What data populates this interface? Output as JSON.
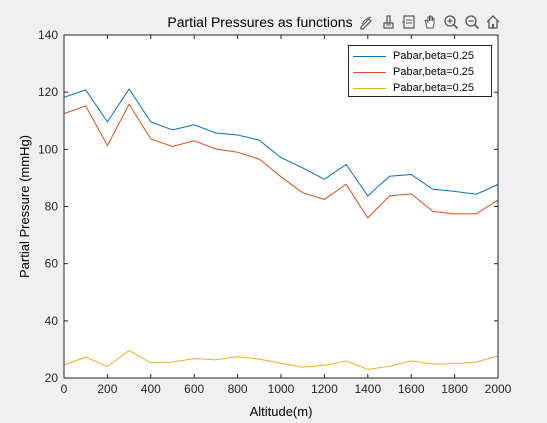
{
  "window": {
    "toolbar_icons": [
      "edit-plot-icon",
      "brush-icon",
      "data-tips-icon",
      "pan-icon",
      "zoom-in-icon",
      "zoom-out-icon",
      "restore-view-icon"
    ]
  },
  "chart_data": {
    "type": "line",
    "title": "Partial Pressures as functions of Altit",
    "xlabel": "Altitude(m)",
    "ylabel": "Partial Pressure (mmHg)",
    "xlim": [
      0,
      2000
    ],
    "ylim": [
      20,
      140
    ],
    "xticks": [
      0,
      200,
      400,
      600,
      800,
      1000,
      1200,
      1400,
      1600,
      1800,
      2000
    ],
    "yticks": [
      20,
      40,
      60,
      80,
      100,
      120,
      140
    ],
    "grid": false,
    "legend_position": "top-right",
    "x": [
      0,
      100,
      200,
      300,
      400,
      500,
      600,
      700,
      800,
      900,
      1000,
      1100,
      1200,
      1300,
      1400,
      1500,
      1600,
      1700,
      1800,
      1900,
      2000
    ],
    "series": [
      {
        "name": "Pabar,beta=0.25",
        "color": "#0072bd",
        "values": [
          118.2,
          120.8,
          109.6,
          121.1,
          109.6,
          106.8,
          108.6,
          105.7,
          105.0,
          103.2,
          97.1,
          93.5,
          89.5,
          94.7,
          83.7,
          90.6,
          91.2,
          86.0,
          85.3,
          84.3,
          87.7
        ]
      },
      {
        "name": "Pabar,beta=0.25",
        "color": "#d95319",
        "values": [
          112.5,
          115.2,
          101.3,
          115.8,
          103.6,
          101.0,
          103.0,
          100.1,
          99.0,
          96.6,
          90.4,
          84.8,
          82.5,
          87.8,
          76.0,
          83.7,
          84.4,
          78.3,
          77.4,
          77.4,
          82.3
        ]
      },
      {
        "name": "Pabar,beta=0.25",
        "color": "#edb120",
        "values": [
          24.5,
          27.3,
          24.0,
          29.6,
          25.3,
          25.6,
          26.8,
          26.4,
          27.4,
          26.6,
          25.1,
          23.8,
          24.4,
          26.0,
          23.0,
          24.1,
          26.0,
          24.9,
          25.0,
          25.6,
          27.7
        ]
      }
    ]
  }
}
